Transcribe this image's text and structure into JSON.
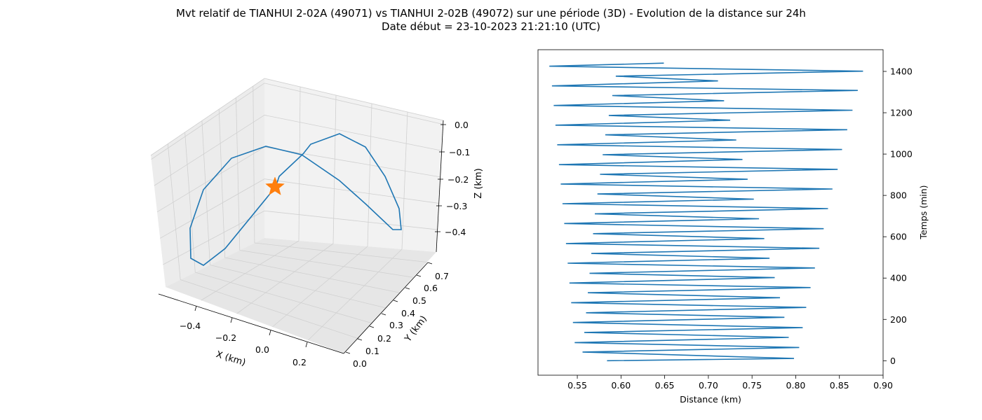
{
  "figure": {
    "title_line1": "Mvt relatif de TIANHUI 2-02A (49071) vs TIANHUI 2-02B (49072) sur une période (3D) - Evolution de la distance sur 24h",
    "title_line2": "Date début = 23-10-2023 21:21:10 (UTC)"
  },
  "colors": {
    "trajectory": "#1f77b4",
    "marker": "#ff7f0e",
    "pane": "#f2f2f2",
    "grid": "#d0d0d0"
  },
  "chart_data": [
    {
      "type": "line3d",
      "xlabel": "X (km)",
      "ylabel": "Y (km)",
      "zlabel": "Z (km)",
      "x_ticks": [
        "−0.4",
        "−0.2",
        "0.0",
        "0.2"
      ],
      "y_ticks": [
        "0.0",
        "0.1",
        "0.2",
        "0.3",
        "0.4",
        "0.5",
        "0.6",
        "0.7"
      ],
      "z_ticks": [
        "0.0",
        "−0.1",
        "−0.2",
        "−0.3",
        "−0.4"
      ],
      "marker": {
        "shape": "star",
        "label": ""
      },
      "grid": true
    },
    {
      "type": "line",
      "xlabel": "Distance (km)",
      "ylabel": "Temps (min)",
      "xlim": [
        0.505,
        0.9
      ],
      "ylim": [
        -70,
        1505
      ],
      "x_ticks": [
        0.55,
        0.6,
        0.65,
        0.7,
        0.75,
        0.8,
        0.85,
        0.9
      ],
      "y_ticks": [
        0,
        200,
        400,
        600,
        800,
        1000,
        1200,
        1400
      ],
      "yaxis_position": "right",
      "series": [
        {
          "x": [
            0.584,
            0.798,
            0.556,
            0.804,
            0.547,
            0.792,
            0.558,
            0.808,
            0.545,
            0.787,
            0.56,
            0.812,
            0.543,
            0.782,
            0.562,
            0.817,
            0.541,
            0.776,
            0.564,
            0.822,
            0.539,
            0.77,
            0.566,
            0.827,
            0.537,
            0.764,
            0.568,
            0.832,
            0.535,
            0.758,
            0.57,
            0.837,
            0.533,
            0.752,
            0.573,
            0.842,
            0.531,
            0.745,
            0.576,
            0.848,
            0.529,
            0.739,
            0.579,
            0.853,
            0.527,
            0.732,
            0.582,
            0.859,
            0.525,
            0.725,
            0.586,
            0.865,
            0.523,
            0.718,
            0.59,
            0.871,
            0.521,
            0.711,
            0.594,
            0.877,
            0.518,
            0.649
          ],
          "y": [
            0,
            11,
            42,
            64,
            88,
            113,
            137,
            160,
            185,
            210,
            232,
            258,
            281,
            305,
            329,
            354,
            376,
            402,
            423,
            449,
            472,
            496,
            519,
            544,
            567,
            591,
            615,
            639,
            664,
            687,
            711,
            736,
            760,
            782,
            807,
            831,
            855,
            878,
            902,
            926,
            949,
            974,
            997,
            1022,
            1045,
            1068,
            1093,
            1118,
            1140,
            1164,
            1187,
            1212,
            1235,
            1258,
            1283,
            1308,
            1330,
            1354,
            1377,
            1401,
            1425,
            1440
          ]
        }
      ]
    }
  ]
}
